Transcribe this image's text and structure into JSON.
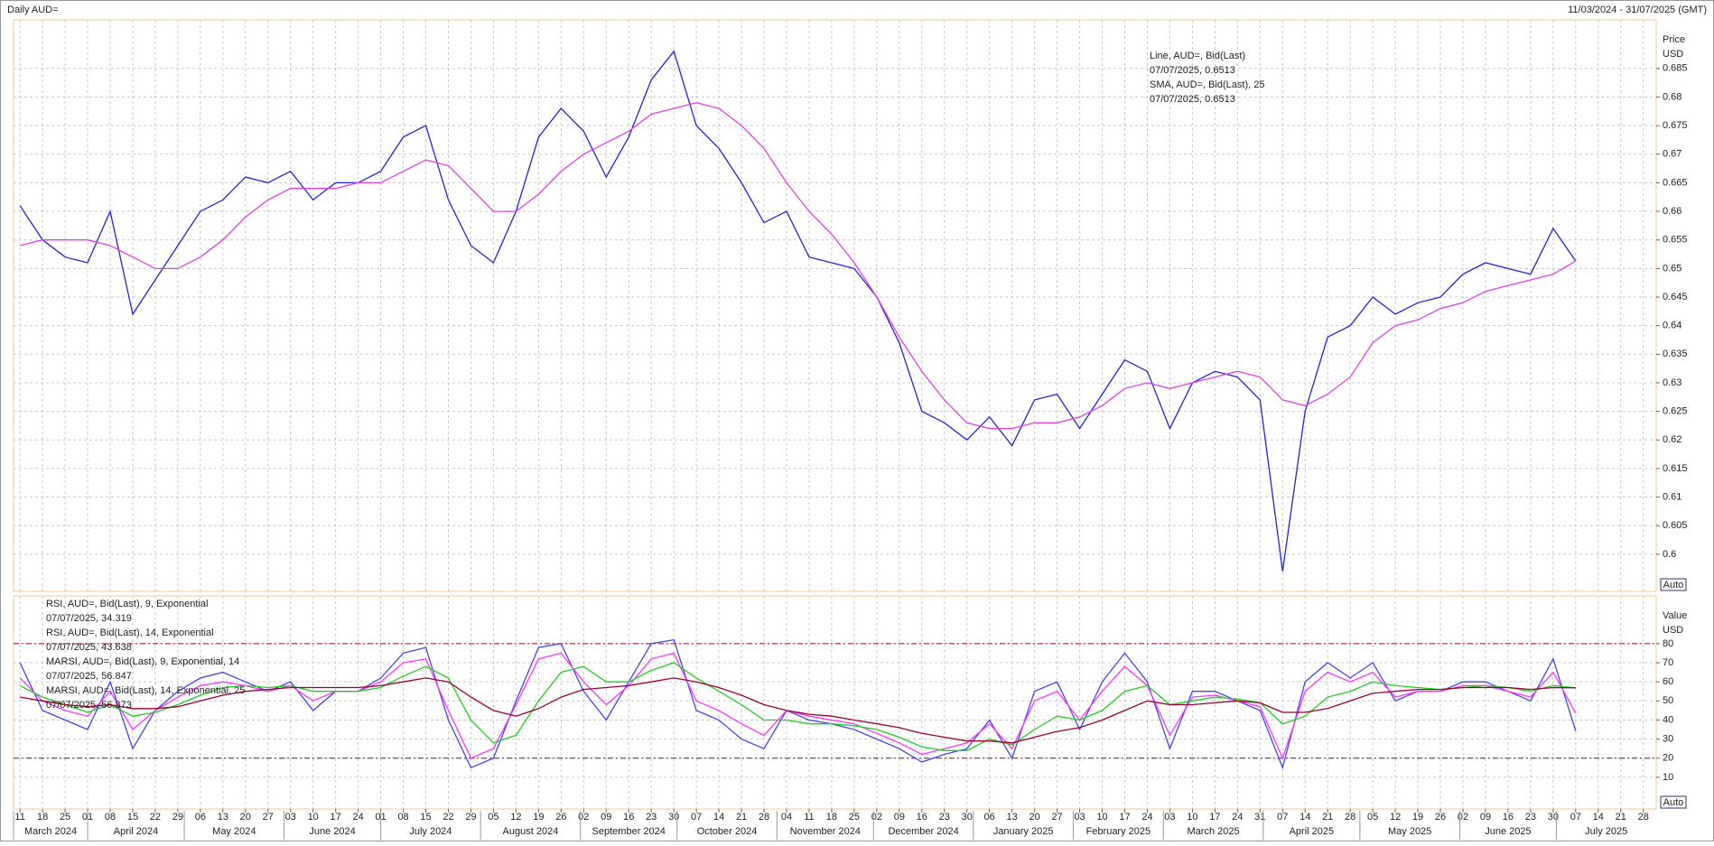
{
  "header": {
    "title": "Daily AUD=",
    "range": "11/03/2024 - 31/07/2025 (GMT)"
  },
  "chart_data": [
    {
      "type": "line",
      "axis_label": "Price",
      "unit_label": "USD",
      "auto_label": "Auto",
      "x": [
        "2024-03-11",
        "2024-03-18",
        "2024-03-25",
        "2024-04-01",
        "2024-04-08",
        "2024-04-15",
        "2024-04-22",
        "2024-04-29",
        "2024-05-06",
        "2024-05-13",
        "2024-05-20",
        "2024-05-27",
        "2024-06-03",
        "2024-06-10",
        "2024-06-17",
        "2024-06-24",
        "2024-07-01",
        "2024-07-08",
        "2024-07-15",
        "2024-07-22",
        "2024-07-29",
        "2024-08-05",
        "2024-08-12",
        "2024-08-19",
        "2024-08-26",
        "2024-09-02",
        "2024-09-09",
        "2024-09-16",
        "2024-09-23",
        "2024-09-30",
        "2024-10-07",
        "2024-10-14",
        "2024-10-21",
        "2024-10-28",
        "2024-11-04",
        "2024-11-11",
        "2024-11-18",
        "2024-11-25",
        "2024-12-02",
        "2024-12-09",
        "2024-12-16",
        "2024-12-23",
        "2024-12-30",
        "2025-01-06",
        "2025-01-13",
        "2025-01-20",
        "2025-01-27",
        "2025-02-03",
        "2025-02-10",
        "2025-02-17",
        "2025-02-24",
        "2025-03-03",
        "2025-03-10",
        "2025-03-17",
        "2025-03-24",
        "2025-03-31",
        "2025-04-07",
        "2025-04-14",
        "2025-04-21",
        "2025-04-28",
        "2025-05-05",
        "2025-05-12",
        "2025-05-19",
        "2025-05-26",
        "2025-06-02",
        "2025-06-09",
        "2025-06-16",
        "2025-06-23",
        "2025-06-30",
        "2025-07-07"
      ],
      "xlim": [
        "2024-03-09",
        "2025-08-01"
      ],
      "ylim": [
        0.5935,
        0.6935
      ],
      "yticks": [
        0.6,
        0.605,
        0.61,
        0.615,
        0.62,
        0.625,
        0.63,
        0.635,
        0.64,
        0.645,
        0.65,
        0.655,
        0.66,
        0.665,
        0.67,
        0.675,
        0.68,
        0.685
      ],
      "grid": true,
      "series": [
        {
          "name": "Line, AUD=, Bid(Last)",
          "last_label": "07/07/2025, 0.6513",
          "color": "#2222dd",
          "values": [
            0.661,
            0.655,
            0.652,
            0.651,
            0.66,
            0.642,
            0.648,
            0.654,
            0.66,
            0.662,
            0.666,
            0.665,
            0.667,
            0.662,
            0.665,
            0.665,
            0.667,
            0.673,
            0.675,
            0.662,
            0.654,
            0.651,
            0.66,
            0.673,
            0.678,
            0.674,
            0.666,
            0.673,
            0.683,
            0.688,
            0.675,
            0.671,
            0.665,
            0.658,
            0.66,
            0.652,
            0.651,
            0.65,
            0.645,
            0.637,
            0.625,
            0.623,
            0.62,
            0.624,
            0.619,
            0.627,
            0.628,
            0.622,
            0.628,
            0.634,
            0.632,
            0.622,
            0.63,
            0.632,
            0.631,
            0.627,
            0.597,
            0.625,
            0.638,
            0.64,
            0.645,
            0.642,
            0.644,
            0.645,
            0.649,
            0.651,
            0.65,
            0.649,
            0.657,
            0.6513
          ]
        },
        {
          "name": "SMA, AUD=, Bid(Last),  25",
          "last_label": "07/07/2025, 0.6513",
          "color": "#e040e0",
          "values": [
            0.654,
            0.655,
            0.655,
            0.655,
            0.654,
            0.652,
            0.65,
            0.65,
            0.652,
            0.655,
            0.659,
            0.662,
            0.664,
            0.664,
            0.664,
            0.665,
            0.665,
            0.667,
            0.669,
            0.668,
            0.664,
            0.66,
            0.66,
            0.663,
            0.667,
            0.67,
            0.672,
            0.674,
            0.677,
            0.678,
            0.679,
            0.678,
            0.675,
            0.671,
            0.665,
            0.66,
            0.656,
            0.651,
            0.645,
            0.638,
            0.632,
            0.627,
            0.623,
            0.622,
            0.622,
            0.623,
            0.623,
            0.624,
            0.626,
            0.629,
            0.63,
            0.629,
            0.63,
            0.631,
            0.632,
            0.631,
            0.627,
            0.626,
            0.628,
            0.631,
            0.637,
            0.64,
            0.641,
            0.643,
            0.644,
            0.646,
            0.647,
            0.648,
            0.649,
            0.6513
          ]
        }
      ]
    },
    {
      "type": "line",
      "axis_label": "Value",
      "unit_label": "USD",
      "auto_label": "Auto",
      "ylim": [
        -6.6,
        105
      ],
      "yticks": [
        10,
        20,
        30,
        40,
        50,
        60,
        70,
        80
      ],
      "reference_lines": [
        80,
        20
      ],
      "grid": true,
      "xticks": [
        {
          "value": "2024-03-11",
          "label": "11"
        },
        {
          "value": "2024-03-18",
          "label": "18"
        },
        {
          "value": "2024-03-25",
          "label": "25"
        },
        {
          "value": "2024-04-01",
          "label": "01"
        },
        {
          "value": "2024-04-08",
          "label": "08"
        },
        {
          "value": "2024-04-15",
          "label": "15"
        },
        {
          "value": "2024-04-22",
          "label": "22"
        },
        {
          "value": "2024-04-29",
          "label": "29"
        },
        {
          "value": "2024-05-06",
          "label": "06"
        },
        {
          "value": "2024-05-13",
          "label": "13"
        },
        {
          "value": "2024-05-20",
          "label": "20"
        },
        {
          "value": "2024-05-27",
          "label": "27"
        },
        {
          "value": "2024-06-03",
          "label": "03"
        },
        {
          "value": "2024-06-10",
          "label": "10"
        },
        {
          "value": "2024-06-17",
          "label": "17"
        },
        {
          "value": "2024-06-24",
          "label": "24"
        },
        {
          "value": "2024-07-01",
          "label": "01"
        },
        {
          "value": "2024-07-08",
          "label": "08"
        },
        {
          "value": "2024-07-15",
          "label": "15"
        },
        {
          "value": "2024-07-22",
          "label": "22"
        },
        {
          "value": "2024-07-29",
          "label": "29"
        },
        {
          "value": "2024-08-05",
          "label": "05"
        },
        {
          "value": "2024-08-12",
          "label": "12"
        },
        {
          "value": "2024-08-19",
          "label": "19"
        },
        {
          "value": "2024-08-26",
          "label": "26"
        },
        {
          "value": "2024-09-02",
          "label": "02"
        },
        {
          "value": "2024-09-09",
          "label": "09"
        },
        {
          "value": "2024-09-16",
          "label": "16"
        },
        {
          "value": "2024-09-23",
          "label": "23"
        },
        {
          "value": "2024-09-30",
          "label": "30"
        },
        {
          "value": "2024-10-07",
          "label": "07"
        },
        {
          "value": "2024-10-14",
          "label": "14"
        },
        {
          "value": "2024-10-21",
          "label": "21"
        },
        {
          "value": "2024-10-28",
          "label": "28"
        },
        {
          "value": "2024-11-04",
          "label": "04"
        },
        {
          "value": "2024-11-11",
          "label": "11"
        },
        {
          "value": "2024-11-18",
          "label": "18"
        },
        {
          "value": "2024-11-25",
          "label": "25"
        },
        {
          "value": "2024-12-02",
          "label": "02"
        },
        {
          "value": "2024-12-09",
          "label": "09"
        },
        {
          "value": "2024-12-16",
          "label": "16"
        },
        {
          "value": "2024-12-23",
          "label": "23"
        },
        {
          "value": "2024-12-30",
          "label": "30"
        },
        {
          "value": "2025-01-06",
          "label": "06"
        },
        {
          "value": "2025-01-13",
          "label": "13"
        },
        {
          "value": "2025-01-20",
          "label": "20"
        },
        {
          "value": "2025-01-27",
          "label": "27"
        },
        {
          "value": "2025-02-03",
          "label": "03"
        },
        {
          "value": "2025-02-10",
          "label": "10"
        },
        {
          "value": "2025-02-17",
          "label": "17"
        },
        {
          "value": "2025-02-24",
          "label": "24"
        },
        {
          "value": "2025-03-03",
          "label": "03"
        },
        {
          "value": "2025-03-10",
          "label": "10"
        },
        {
          "value": "2025-03-17",
          "label": "17"
        },
        {
          "value": "2025-03-24",
          "label": "24"
        },
        {
          "value": "2025-03-31",
          "label": "31"
        },
        {
          "value": "2025-04-07",
          "label": "07"
        },
        {
          "value": "2025-04-14",
          "label": "14"
        },
        {
          "value": "2025-04-21",
          "label": "21"
        },
        {
          "value": "2025-04-28",
          "label": "28"
        },
        {
          "value": "2025-05-05",
          "label": "05"
        },
        {
          "value": "2025-05-12",
          "label": "12"
        },
        {
          "value": "2025-05-19",
          "label": "19"
        },
        {
          "value": "2025-05-26",
          "label": "26"
        },
        {
          "value": "2025-06-02",
          "label": "02"
        },
        {
          "value": "2025-06-09",
          "label": "09"
        },
        {
          "value": "2025-06-16",
          "label": "16"
        },
        {
          "value": "2025-06-23",
          "label": "23"
        },
        {
          "value": "2025-06-30",
          "label": "30"
        },
        {
          "value": "2025-07-07",
          "label": "07"
        },
        {
          "value": "2025-07-14",
          "label": "14"
        },
        {
          "value": "2025-07-21",
          "label": "21"
        },
        {
          "value": "2025-07-28",
          "label": "28"
        }
      ],
      "months": [
        "March 2024",
        "April 2024",
        "May 2024",
        "June 2024",
        "July 2024",
        "August 2024",
        "September 2024",
        "October 2024",
        "November 2024",
        "December 2024",
        "January 2025",
        "February 2025",
        "March 2025",
        "April 2025",
        "May 2025",
        "June 2025",
        "July 2025"
      ],
      "series": [
        {
          "name": "RSI, AUD=, Bid(Last),  9, Exponential",
          "last_label": "07/07/2025, 34.319",
          "color": "#4444ee",
          "values": [
            70,
            45,
            40,
            35,
            60,
            25,
            45,
            55,
            62,
            65,
            60,
            55,
            60,
            45,
            55,
            55,
            62,
            75,
            78,
            40,
            15,
            20,
            50,
            78,
            80,
            55,
            40,
            60,
            80,
            82,
            45,
            40,
            30,
            25,
            45,
            40,
            38,
            35,
            30,
            25,
            18,
            22,
            25,
            40,
            20,
            55,
            60,
            35,
            60,
            75,
            60,
            25,
            55,
            55,
            50,
            45,
            15,
            60,
            70,
            62,
            70,
            50,
            55,
            55,
            60,
            60,
            55,
            50,
            72,
            34.319
          ]
        },
        {
          "name": "RSI, AUD=, Bid(Last),  14, Exponential",
          "last_label": "07/07/2025, 43.638",
          "color": "#ff33ff",
          "values": [
            62,
            50,
            45,
            42,
            55,
            35,
            45,
            52,
            58,
            60,
            58,
            55,
            58,
            50,
            55,
            55,
            60,
            70,
            72,
            45,
            20,
            25,
            48,
            72,
            75,
            60,
            48,
            58,
            72,
            75,
            50,
            45,
            38,
            32,
            45,
            42,
            40,
            38,
            33,
            28,
            22,
            25,
            28,
            38,
            25,
            50,
            55,
            40,
            55,
            68,
            58,
            32,
            52,
            53,
            50,
            47,
            20,
            55,
            65,
            60,
            65,
            52,
            55,
            55,
            58,
            58,
            55,
            52,
            65,
            43.638
          ]
        },
        {
          "name": "MARSI, AUD=, Bid(Last),  9, Exponential, 14",
          "last_label": "07/07/2025, 56.847",
          "color": "#22cc22",
          "values": [
            58,
            52,
            48,
            44,
            48,
            42,
            44,
            48,
            53,
            57,
            58,
            57,
            58,
            55,
            55,
            55,
            57,
            63,
            68,
            62,
            40,
            28,
            32,
            50,
            65,
            68,
            60,
            60,
            66,
            70,
            62,
            55,
            48,
            40,
            40,
            38,
            38,
            37,
            35,
            31,
            26,
            24,
            24,
            30,
            27,
            35,
            42,
            40,
            45,
            55,
            58,
            48,
            50,
            52,
            51,
            49,
            38,
            42,
            52,
            55,
            60,
            58,
            57,
            56,
            57,
            58,
            57,
            55,
            58,
            56.847
          ]
        },
        {
          "name": "MARSI, AUD=, Bid(Last),  14, Exponential, 25",
          "last_label": "07/07/2025, 56.873",
          "color": "#990033",
          "values": [
            52,
            50,
            48,
            47,
            48,
            46,
            46,
            47,
            50,
            53,
            55,
            56,
            57,
            57,
            57,
            57,
            58,
            60,
            62,
            60,
            52,
            45,
            42,
            46,
            52,
            56,
            57,
            58,
            60,
            62,
            60,
            57,
            53,
            48,
            45,
            43,
            42,
            40,
            38,
            36,
            33,
            31,
            29,
            29,
            28,
            31,
            34,
            36,
            40,
            45,
            50,
            48,
            48,
            49,
            50,
            49,
            44,
            44,
            46,
            50,
            54,
            55,
            56,
            56,
            57,
            57,
            57,
            56,
            57,
            56.873
          ]
        }
      ]
    }
  ]
}
